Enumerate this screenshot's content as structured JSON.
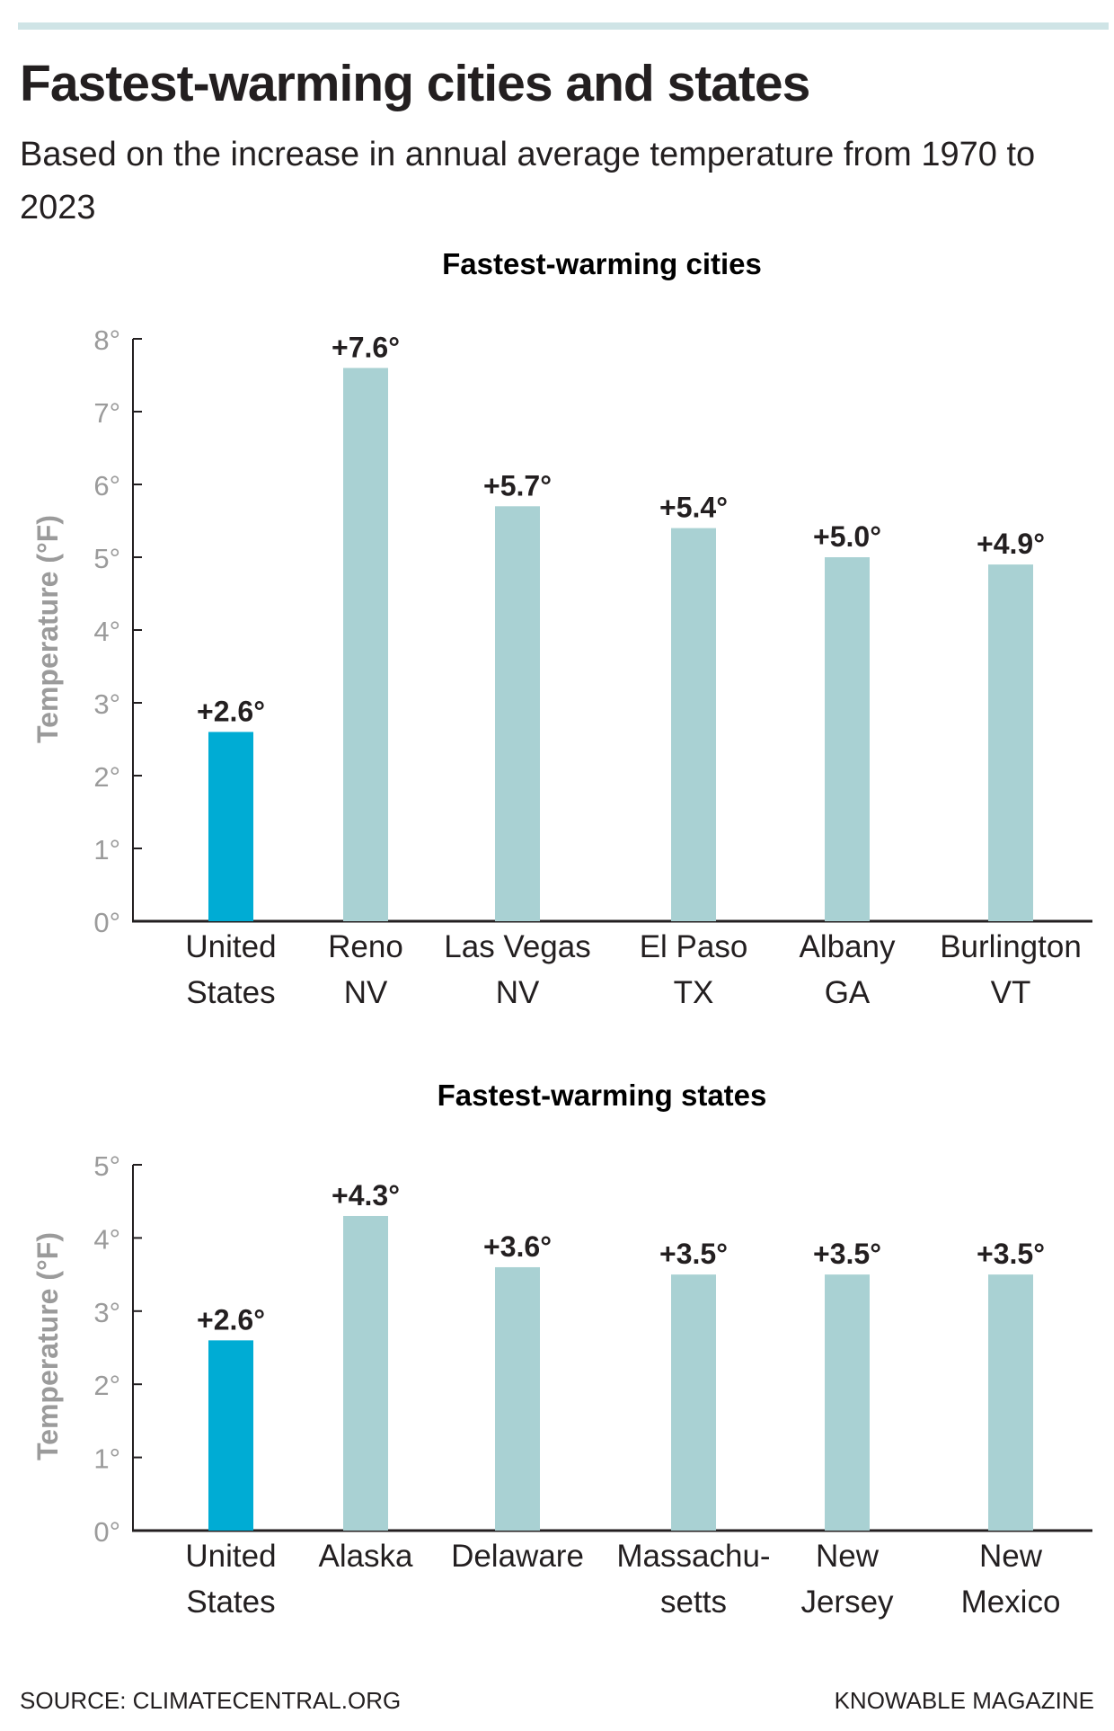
{
  "header": {
    "title": "Fastest-warming cities and states",
    "subtitle": "Based on the increase in annual average temperature from 1970 to 2023"
  },
  "footer": {
    "source": "SOURCE: CLIMATECENTRAL.ORG",
    "credit": "KNOWABLE MAGAZINE"
  },
  "colors": {
    "highlight": "#00acd4",
    "bar": "#a9d1d3",
    "rule": "#cfe4e6"
  },
  "chart_data": [
    {
      "type": "bar",
      "title": "Fastest-warming cities",
      "ylabel": "Temperature (°F)",
      "ylim": [
        0,
        8
      ],
      "yticks": [
        "0°",
        "1°",
        "2°",
        "3°",
        "4°",
        "5°",
        "6°",
        "7°",
        "8°"
      ],
      "categories": [
        [
          "United",
          "States"
        ],
        [
          "Reno",
          "NV"
        ],
        [
          "Las Vegas",
          "NV"
        ],
        [
          "El Paso",
          "TX"
        ],
        [
          "Albany",
          "GA"
        ],
        [
          "Burlington",
          "VT"
        ]
      ],
      "values": [
        2.6,
        7.6,
        5.7,
        5.4,
        5.0,
        4.9
      ],
      "labels": [
        "+2.6°",
        "+7.6°",
        "+5.7°",
        "+5.4°",
        "+5.0°",
        "+4.9°"
      ],
      "highlight_index": 0,
      "grid": false
    },
    {
      "type": "bar",
      "title": "Fastest-warming states",
      "ylabel": "Temperature (°F)",
      "ylim": [
        0,
        5
      ],
      "yticks": [
        "0°",
        "1°",
        "2°",
        "3°",
        "4°",
        "5°"
      ],
      "categories": [
        [
          "United",
          "States"
        ],
        [
          "Alaska"
        ],
        [
          "Delaware"
        ],
        [
          "Massachu-",
          "setts"
        ],
        [
          "New",
          "Jersey"
        ],
        [
          "New",
          "Mexico"
        ]
      ],
      "values": [
        2.6,
        4.3,
        3.6,
        3.5,
        3.5,
        3.5
      ],
      "labels": [
        "+2.6°",
        "+4.3°",
        "+3.6°",
        "+3.5°",
        "+3.5°",
        "+3.5°"
      ],
      "highlight_index": 0,
      "grid": false
    }
  ]
}
